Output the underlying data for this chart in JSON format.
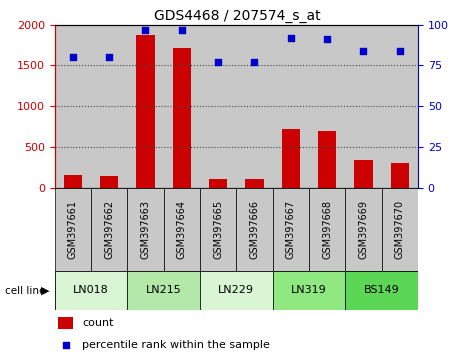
{
  "title": "GDS4468 / 207574_s_at",
  "samples": [
    "GSM397661",
    "GSM397662",
    "GSM397663",
    "GSM397664",
    "GSM397665",
    "GSM397666",
    "GSM397667",
    "GSM397668",
    "GSM397669",
    "GSM397670"
  ],
  "counts": [
    155,
    148,
    1870,
    1710,
    105,
    112,
    720,
    700,
    340,
    305
  ],
  "percentile_ranks": [
    80,
    80,
    97,
    97,
    77,
    77,
    92,
    91,
    84,
    84
  ],
  "cell_lines": [
    {
      "name": "LN018",
      "samples": [
        0,
        1
      ],
      "color": "#d9f5d3"
    },
    {
      "name": "LN215",
      "samples": [
        2,
        3
      ],
      "color": "#b3e8a8"
    },
    {
      "name": "LN229",
      "samples": [
        4,
        5
      ],
      "color": "#d9f5d3"
    },
    {
      "name": "LN319",
      "samples": [
        6,
        7
      ],
      "color": "#90e880"
    },
    {
      "name": "BS149",
      "samples": [
        8,
        9
      ],
      "color": "#5cd655"
    }
  ],
  "ylim_left": [
    0,
    2000
  ],
  "ylim_right": [
    0,
    100
  ],
  "yticks_left": [
    0,
    500,
    1000,
    1500,
    2000
  ],
  "yticks_right": [
    0,
    25,
    50,
    75,
    100
  ],
  "bar_color": "#cc0000",
  "scatter_color": "#0000cc",
  "grid_color": "#444444",
  "sample_bg_color": "#c8c8c8",
  "legend_count_label": "count",
  "legend_pct_label": "percentile rank within the sample"
}
